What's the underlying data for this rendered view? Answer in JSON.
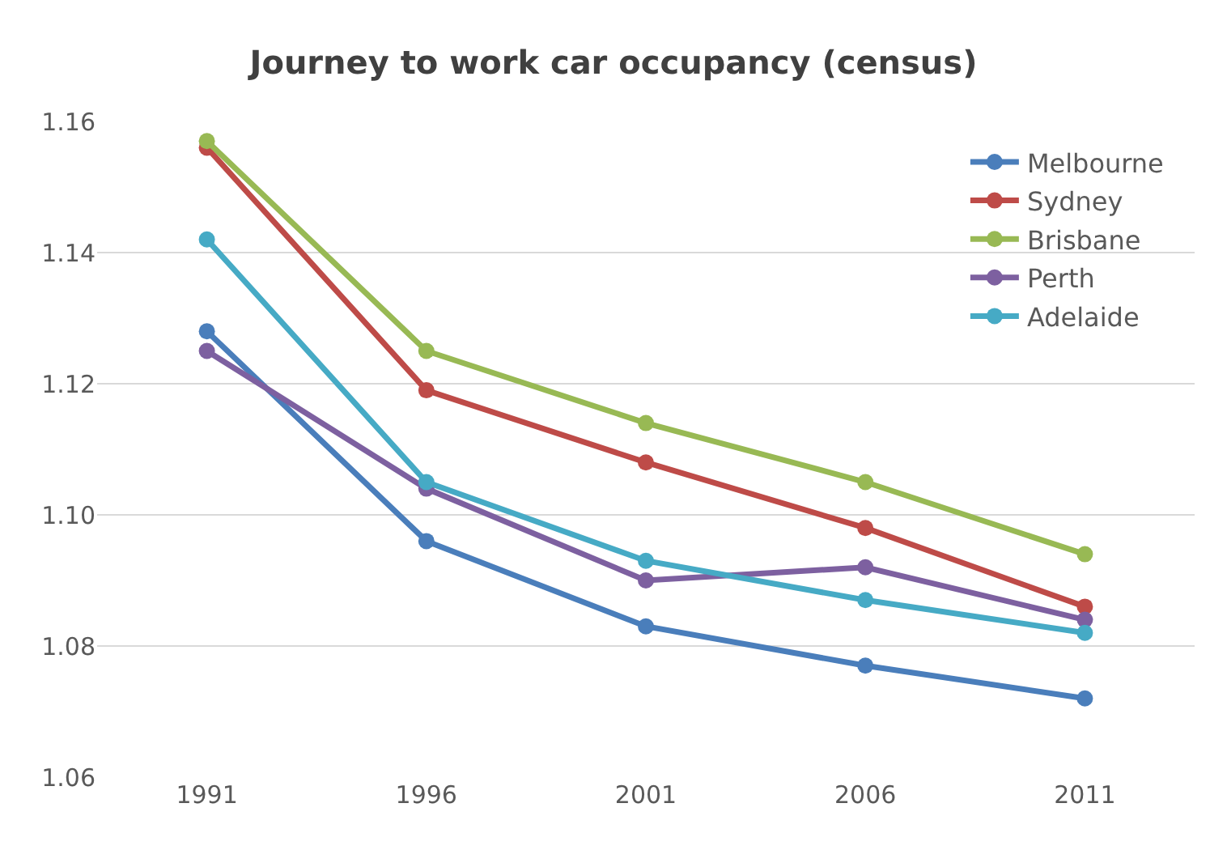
{
  "chart_data": {
    "type": "line",
    "title": "Journey to work car occupancy (census)",
    "categories": [
      "1991",
      "1996",
      "2001",
      "2006",
      "2011"
    ],
    "series": [
      {
        "name": "Melbourne",
        "color": "#4a7ebb",
        "values": [
          1.128,
          1.096,
          1.083,
          1.077,
          1.072
        ]
      },
      {
        "name": "Sydney",
        "color": "#be4b48",
        "values": [
          1.156,
          1.119,
          1.108,
          1.098,
          1.086
        ]
      },
      {
        "name": "Brisbane",
        "color": "#98b954",
        "values": [
          1.157,
          1.125,
          1.114,
          1.105,
          1.094
        ]
      },
      {
        "name": "Perth",
        "color": "#7d60a0",
        "values": [
          1.125,
          1.104,
          1.09,
          1.092,
          1.084
        ]
      },
      {
        "name": "Adelaide",
        "color": "#46aac5",
        "values": [
          1.142,
          1.105,
          1.093,
          1.087,
          1.082
        ]
      }
    ],
    "ylim": [
      1.06,
      1.16
    ],
    "yticks": [
      {
        "value": 1.06,
        "label": "1.06"
      },
      {
        "value": 1.08,
        "label": "1.08"
      },
      {
        "value": 1.1,
        "label": "1.10"
      },
      {
        "value": 1.12,
        "label": "1.12"
      },
      {
        "value": 1.14,
        "label": "1.14"
      },
      {
        "value": 1.16,
        "label": "1.16"
      }
    ],
    "grid": "y",
    "legend": "top right",
    "marker": "circle",
    "line_style": "solid"
  }
}
